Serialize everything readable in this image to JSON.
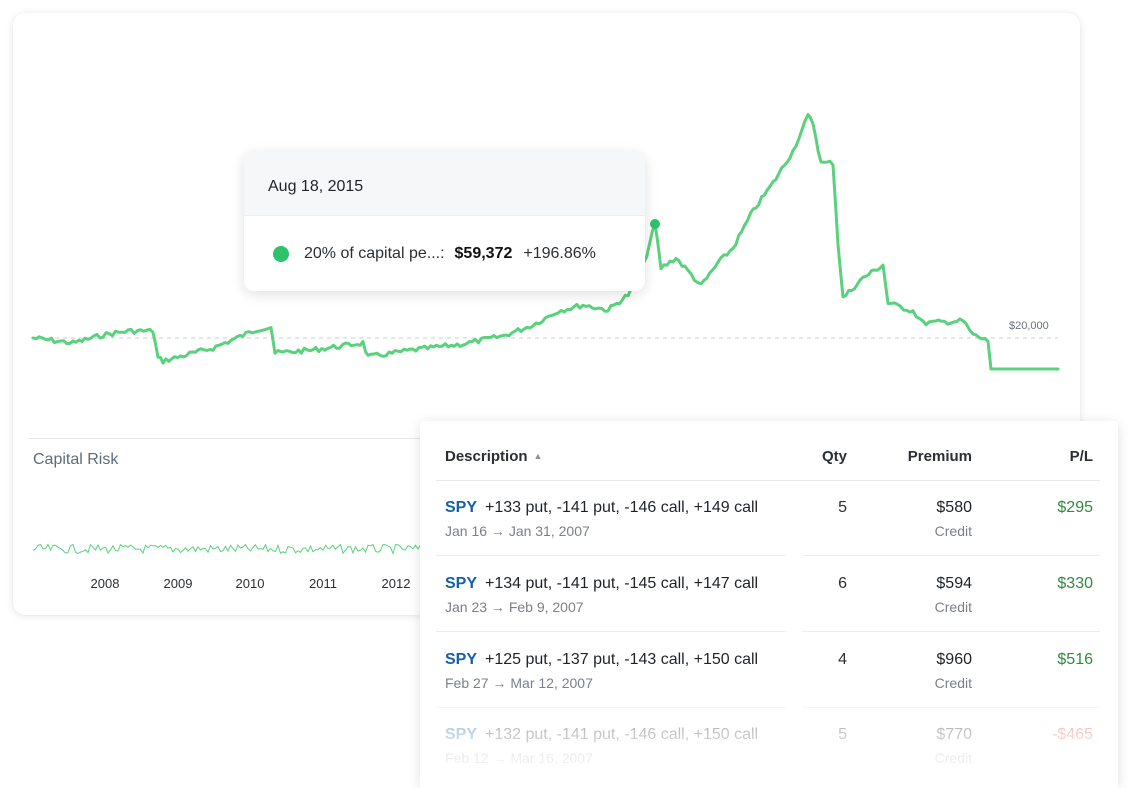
{
  "chart": {
    "reference_label": "$20,000",
    "risk_title": "Capital Risk",
    "line_color": "#5ad17c",
    "marker_color": "#2cc36b",
    "years": [
      "2008",
      "2009",
      "2010",
      "2011",
      "2012"
    ]
  },
  "tooltip": {
    "date": "Aug 18, 2015",
    "series": "20% of capital pe...:",
    "value": "$59,372",
    "pct": "+196.86%"
  },
  "table": {
    "headers": {
      "description": "Description",
      "qty": "Qty",
      "premium": "Premium",
      "pl": "P/L"
    },
    "rows": [
      {
        "ticker": "SPY",
        "legs": "+133 put, -141 put, -146 call, +149 call",
        "dates": "Jan 16 → Jan 31, 2007",
        "qty": "5",
        "premium": "$580",
        "credit": "Credit",
        "pl": "$295",
        "pl_sign": "pos"
      },
      {
        "ticker": "SPY",
        "legs": "+134 put, -141 put, -145 call, +147 call",
        "dates": "Jan 23 → Feb 9, 2007",
        "qty": "6",
        "premium": "$594",
        "credit": "Credit",
        "pl": "$330",
        "pl_sign": "pos"
      },
      {
        "ticker": "SPY",
        "legs": "+125 put, -137 put, -143 call, +150 call",
        "dates": "Feb 27 → Mar 12, 2007",
        "qty": "4",
        "premium": "$960",
        "credit": "Credit",
        "pl": "$516",
        "pl_sign": "pos"
      },
      {
        "ticker": "SPY",
        "legs": "+132 put, -141 put, -146 call, +150 call",
        "dates": "Feb 12 → Mar 16, 2007",
        "qty": "5",
        "premium": "$770",
        "credit": "Credit",
        "pl": "-$465",
        "pl_sign": "neg"
      }
    ]
  }
}
